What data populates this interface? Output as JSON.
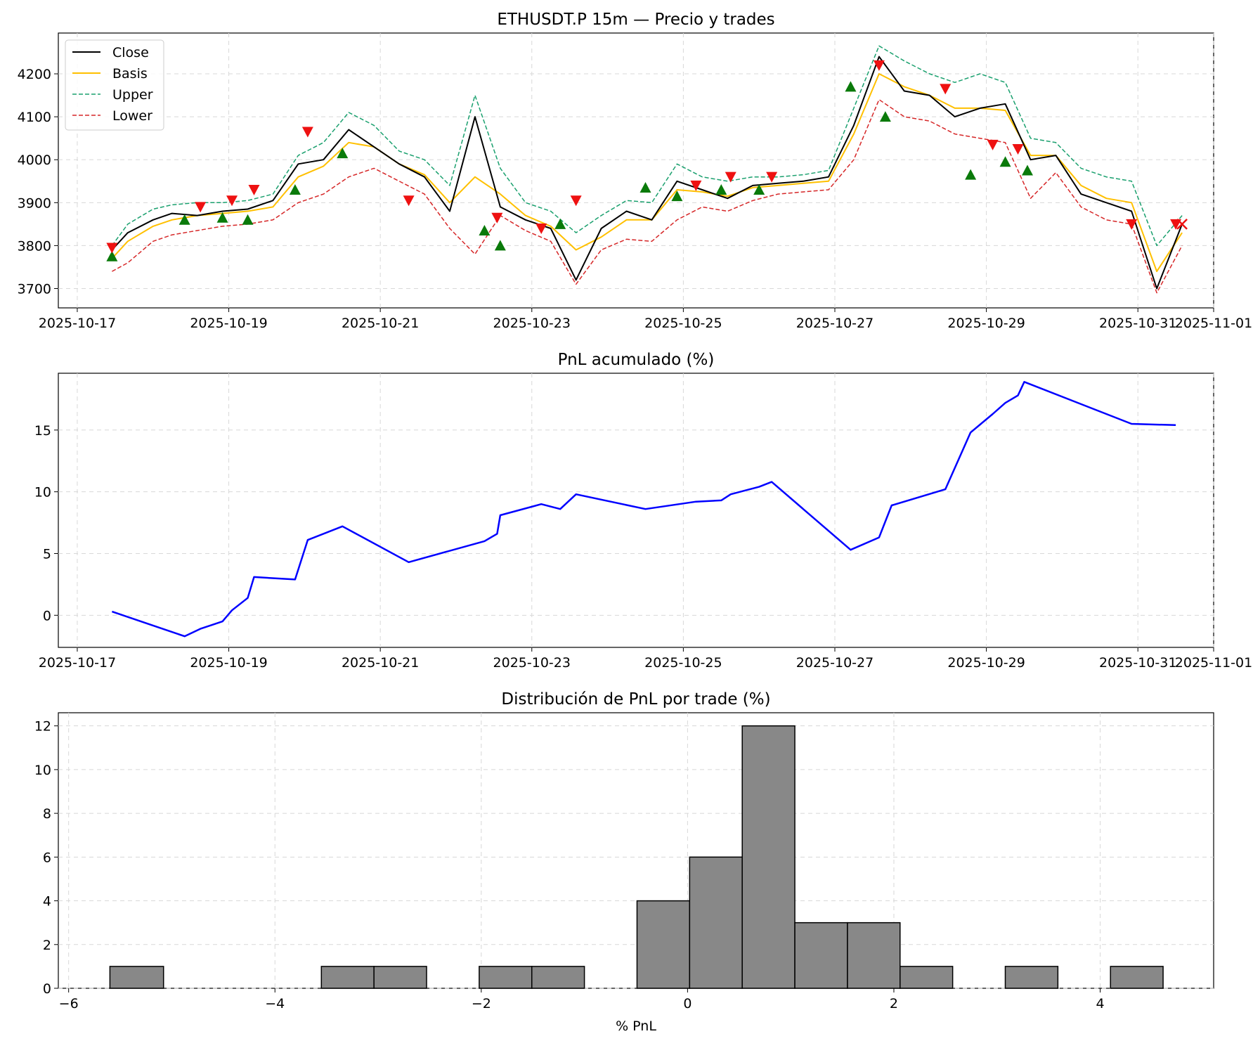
{
  "chart_data": [
    {
      "type": "line",
      "title": "ETHUSDT.P 15m — Precio y trades",
      "xlabel": "",
      "ylabel": "",
      "x_ticks": [
        "2025-10-17",
        "2025-10-19",
        "2025-10-21",
        "2025-10-23",
        "2025-10-25",
        "2025-10-27",
        "2025-10-29",
        "2025-10-31",
        "2025-11-01"
      ],
      "y_ticks": [
        3700,
        3800,
        3900,
        4000,
        4100,
        4200
      ],
      "xlim": [
        "2025-10-16T18:00",
        "2025-11-01T00:00"
      ],
      "ylim": [
        3655,
        4295
      ],
      "grid": true,
      "legend_position": "top-left",
      "legend": [
        "Close",
        "Basis",
        "Upper",
        "Lower"
      ],
      "colors": {
        "close": "#000000",
        "basis": "#ffc000",
        "upper": "#1aa06e",
        "lower": "#d62728",
        "entry_marker": "#0a7a0a",
        "exit_marker": "#ee1111"
      },
      "x": [
        "2025-10-17T11:00",
        "2025-10-17T16:00",
        "2025-10-18T00:00",
        "2025-10-18T06:00",
        "2025-10-18T14:00",
        "2025-10-18T22:00",
        "2025-10-19T06:00",
        "2025-10-19T14:00",
        "2025-10-19T22:00",
        "2025-10-20T06:00",
        "2025-10-20T14:00",
        "2025-10-20T22:00",
        "2025-10-21T06:00",
        "2025-10-21T14:00",
        "2025-10-21T22:00",
        "2025-10-22T06:00",
        "2025-10-22T14:00",
        "2025-10-22T22:00",
        "2025-10-23T06:00",
        "2025-10-23T14:00",
        "2025-10-23T22:00",
        "2025-10-24T06:00",
        "2025-10-24T14:00",
        "2025-10-24T22:00",
        "2025-10-25T06:00",
        "2025-10-25T14:00",
        "2025-10-25T22:00",
        "2025-10-26T06:00",
        "2025-10-26T14:00",
        "2025-10-26T22:00",
        "2025-10-27T06:00",
        "2025-10-27T14:00",
        "2025-10-27T22:00",
        "2025-10-28T06:00",
        "2025-10-28T14:00",
        "2025-10-28T22:00",
        "2025-10-29T06:00",
        "2025-10-29T14:00",
        "2025-10-29T22:00",
        "2025-10-30T06:00",
        "2025-10-30T14:00",
        "2025-10-30T22:00",
        "2025-10-31T06:00",
        "2025-10-31T14:00"
      ],
      "series": [
        {
          "name": "Close",
          "values": [
            3790,
            3830,
            3860,
            3875,
            3870,
            3880,
            3885,
            3905,
            3990,
            4000,
            4070,
            4030,
            3990,
            3960,
            3880,
            4100,
            3890,
            3860,
            3840,
            3720,
            3840,
            3880,
            3860,
            3950,
            3930,
            3910,
            3940,
            3945,
            3950,
            3960,
            4080,
            4240,
            4160,
            4150,
            4100,
            4120,
            4130,
            4000,
            4010,
            3920,
            3900,
            3880,
            3700,
            3850
          ]
        },
        {
          "name": "Basis",
          "values": [
            3770,
            3810,
            3845,
            3860,
            3870,
            3875,
            3880,
            3890,
            3960,
            3985,
            4040,
            4030,
            3990,
            3965,
            3900,
            3960,
            3920,
            3870,
            3845,
            3790,
            3820,
            3860,
            3860,
            3930,
            3925,
            3915,
            3935,
            3940,
            3945,
            3950,
            4060,
            4200,
            4170,
            4150,
            4120,
            4120,
            4115,
            4010,
            4010,
            3940,
            3910,
            3900,
            3740,
            3830
          ]
        },
        {
          "name": "Upper",
          "values": [
            3800,
            3850,
            3885,
            3895,
            3900,
            3900,
            3905,
            3920,
            4010,
            4040,
            4110,
            4080,
            4020,
            4000,
            3940,
            4150,
            3980,
            3900,
            3880,
            3830,
            3870,
            3905,
            3900,
            3990,
            3960,
            3950,
            3960,
            3960,
            3965,
            3975,
            4120,
            4265,
            4230,
            4200,
            4180,
            4200,
            4180,
            4050,
            4040,
            3980,
            3960,
            3950,
            3800,
            3870
          ]
        },
        {
          "name": "Lower",
          "values": [
            3740,
            3760,
            3810,
            3825,
            3835,
            3845,
            3850,
            3860,
            3900,
            3920,
            3960,
            3980,
            3950,
            3920,
            3840,
            3780,
            3870,
            3835,
            3810,
            3710,
            3790,
            3815,
            3810,
            3860,
            3890,
            3880,
            3905,
            3920,
            3925,
            3930,
            4000,
            4140,
            4100,
            4090,
            4060,
            4050,
            4040,
            3910,
            3970,
            3890,
            3860,
            3850,
            3690,
            3800
          ]
        }
      ],
      "entries": [
        {
          "x": "2025-10-17T11:00",
          "y": 3775
        },
        {
          "x": "2025-10-18T10:00",
          "y": 3860
        },
        {
          "x": "2025-10-18T22:00",
          "y": 3865
        },
        {
          "x": "2025-10-19T06:00",
          "y": 3860
        },
        {
          "x": "2025-10-19T21:00",
          "y": 3930
        },
        {
          "x": "2025-10-20T12:00",
          "y": 4015
        },
        {
          "x": "2025-10-22T09:00",
          "y": 3835
        },
        {
          "x": "2025-10-22T14:00",
          "y": 3800
        },
        {
          "x": "2025-10-23T09:00",
          "y": 3850
        },
        {
          "x": "2025-10-24T12:00",
          "y": 3935
        },
        {
          "x": "2025-10-24T22:00",
          "y": 3915
        },
        {
          "x": "2025-10-25T12:00",
          "y": 3930
        },
        {
          "x": "2025-10-26T00:00",
          "y": 3930
        },
        {
          "x": "2025-10-27T05:00",
          "y": 4170
        },
        {
          "x": "2025-10-27T16:00",
          "y": 4100
        },
        {
          "x": "2025-10-28T19:00",
          "y": 3965
        },
        {
          "x": "2025-10-29T06:00",
          "y": 3995
        },
        {
          "x": "2025-10-29T13:00",
          "y": 3975
        }
      ],
      "exits": [
        {
          "x": "2025-10-17T11:00",
          "y": 3795
        },
        {
          "x": "2025-10-18T15:00",
          "y": 3890
        },
        {
          "x": "2025-10-19T01:00",
          "y": 3905
        },
        {
          "x": "2025-10-19T08:00",
          "y": 3930
        },
        {
          "x": "2025-10-20T01:00",
          "y": 4065
        },
        {
          "x": "2025-10-21T09:00",
          "y": 3905
        },
        {
          "x": "2025-10-22T13:00",
          "y": 3865
        },
        {
          "x": "2025-10-23T03:00",
          "y": 3840
        },
        {
          "x": "2025-10-23T14:00",
          "y": 3905
        },
        {
          "x": "2025-10-25T04:00",
          "y": 3940
        },
        {
          "x": "2025-10-25T15:00",
          "y": 3960
        },
        {
          "x": "2025-10-26T04:00",
          "y": 3960
        },
        {
          "x": "2025-10-27T14:00",
          "y": 4220
        },
        {
          "x": "2025-10-28T11:00",
          "y": 4165
        },
        {
          "x": "2025-10-29T02:00",
          "y": 4035
        },
        {
          "x": "2025-10-29T10:00",
          "y": 4025
        },
        {
          "x": "2025-10-30T22:00",
          "y": 3850
        },
        {
          "x": "2025-10-31T12:00",
          "y": 3850
        }
      ]
    },
    {
      "type": "line",
      "title": "PnL acumulado (%)",
      "xlabel": "",
      "ylabel": "",
      "x_ticks": [
        "2025-10-17",
        "2025-10-19",
        "2025-10-21",
        "2025-10-23",
        "2025-10-25",
        "2025-10-27",
        "2025-10-29",
        "2025-10-31",
        "2025-11-01"
      ],
      "y_ticks": [
        0,
        5,
        10,
        15
      ],
      "xlim": [
        "2025-10-16T18:00",
        "2025-11-01T00:00"
      ],
      "ylim": [
        -2.6,
        19.6
      ],
      "grid": true,
      "colors": {
        "line": "#0000ff"
      },
      "x": [
        "2025-10-17T11:00",
        "2025-10-18T10:00",
        "2025-10-18T15:00",
        "2025-10-18T22:00",
        "2025-10-19T01:00",
        "2025-10-19T06:00",
        "2025-10-19T08:00",
        "2025-10-19T21:00",
        "2025-10-20T01:00",
        "2025-10-20T12:00",
        "2025-10-21T09:00",
        "2025-10-22T09:00",
        "2025-10-22T13:00",
        "2025-10-22T14:00",
        "2025-10-23T03:00",
        "2025-10-23T09:00",
        "2025-10-23T14:00",
        "2025-10-24T12:00",
        "2025-10-25T04:00",
        "2025-10-25T12:00",
        "2025-10-25T15:00",
        "2025-10-26T00:00",
        "2025-10-26T04:00",
        "2025-10-27T05:00",
        "2025-10-27T14:00",
        "2025-10-27T18:00",
        "2025-10-28T11:00",
        "2025-10-28T19:00",
        "2025-10-29T02:00",
        "2025-10-29T06:00",
        "2025-10-29T10:00",
        "2025-10-29T12:00",
        "2025-10-30T22:00",
        "2025-10-31T12:00"
      ],
      "series": [
        {
          "name": "",
          "values": [
            0.3,
            -1.7,
            -1.1,
            -0.5,
            0.4,
            1.4,
            3.1,
            2.9,
            6.1,
            7.2,
            4.3,
            6.0,
            6.6,
            8.1,
            9.0,
            8.6,
            9.8,
            8.6,
            9.2,
            9.3,
            9.8,
            10.4,
            10.8,
            5.3,
            6.3,
            8.9,
            10.2,
            14.8,
            16.3,
            17.2,
            17.8,
            18.9,
            15.5,
            15.4
          ]
        }
      ]
    },
    {
      "type": "bar",
      "title": "Distribución de PnL por trade (%)",
      "xlabel": "% PnL",
      "ylabel": "",
      "x_ticks": [
        -6,
        -4,
        -2,
        0,
        2,
        4
      ],
      "x_tick_labels": [
        "−6",
        "−4",
        "−2",
        "0",
        "2",
        "4"
      ],
      "y_ticks": [
        0,
        2,
        4,
        6,
        8,
        10,
        12
      ],
      "xlim": [
        -6.1,
        5.1
      ],
      "ylim": [
        0,
        12.6
      ],
      "grid": true,
      "colors": {
        "bar": "#888888",
        "edge": "#000000"
      },
      "bins": [
        {
          "from": -5.6,
          "to": -5.08,
          "count": 1
        },
        {
          "from": -5.08,
          "to": -4.57,
          "count": 0
        },
        {
          "from": -4.57,
          "to": -4.06,
          "count": 0
        },
        {
          "from": -4.06,
          "to": -3.55,
          "count": 0
        },
        {
          "from": -3.55,
          "to": -3.04,
          "count": 1
        },
        {
          "from": -3.04,
          "to": -2.53,
          "count": 1
        },
        {
          "from": -2.53,
          "to": -2.02,
          "count": 0
        },
        {
          "from": -2.02,
          "to": -1.51,
          "count": 1
        },
        {
          "from": -1.51,
          "to": -1.0,
          "count": 1
        },
        {
          "from": -1.0,
          "to": -0.49,
          "count": 0
        },
        {
          "from": -0.49,
          "to": 0.02,
          "count": 4
        },
        {
          "from": 0.02,
          "to": 0.53,
          "count": 6
        },
        {
          "from": 0.53,
          "to": 1.04,
          "count": 12
        },
        {
          "from": 1.04,
          "to": 1.55,
          "count": 3
        },
        {
          "from": 1.55,
          "to": 2.06,
          "count": 3
        },
        {
          "from": 2.06,
          "to": 2.57,
          "count": 1
        },
        {
          "from": 2.57,
          "to": 3.08,
          "count": 0
        },
        {
          "from": 3.08,
          "to": 3.59,
          "count": 1
        },
        {
          "from": 3.59,
          "to": 4.1,
          "count": 0
        },
        {
          "from": 4.1,
          "to": 4.61,
          "count": 1
        }
      ]
    }
  ]
}
